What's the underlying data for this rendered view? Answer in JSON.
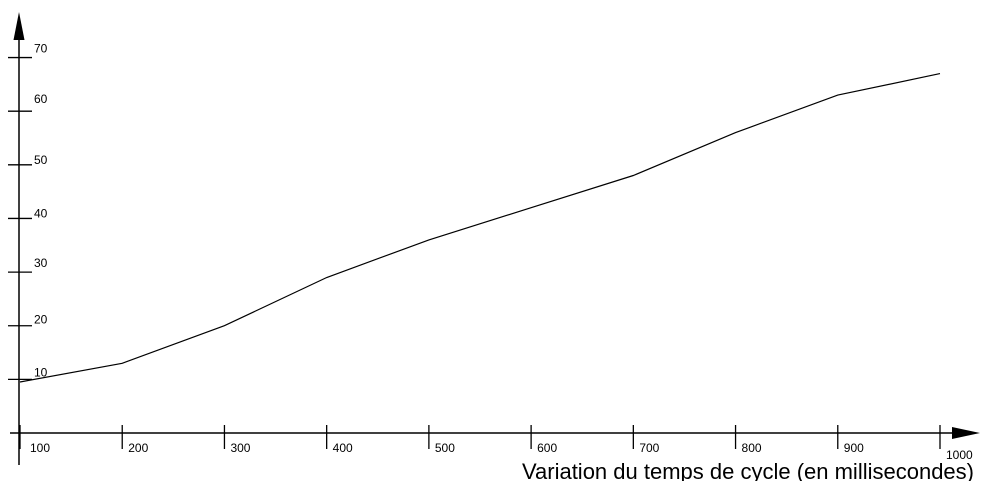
{
  "chart_data": {
    "type": "line",
    "title": "",
    "xlabel": "Variation du temps de cycle (en millisecondes)",
    "ylabel": "",
    "x_ticks": [
      100,
      200,
      300,
      400,
      500,
      600,
      700,
      800,
      900,
      1000
    ],
    "y_ticks": [
      10,
      20,
      30,
      40,
      50,
      60,
      70
    ],
    "xlim": [
      100,
      1000
    ],
    "ylim": [
      0,
      75
    ],
    "grid": false,
    "legend": "none",
    "series": [
      {
        "x": [
          100,
          200,
          300,
          400,
          500,
          600,
          700,
          800,
          900,
          1000
        ],
        "values": [
          9.5,
          13,
          20,
          29,
          36,
          42,
          48,
          56,
          63,
          67
        ]
      }
    ]
  }
}
